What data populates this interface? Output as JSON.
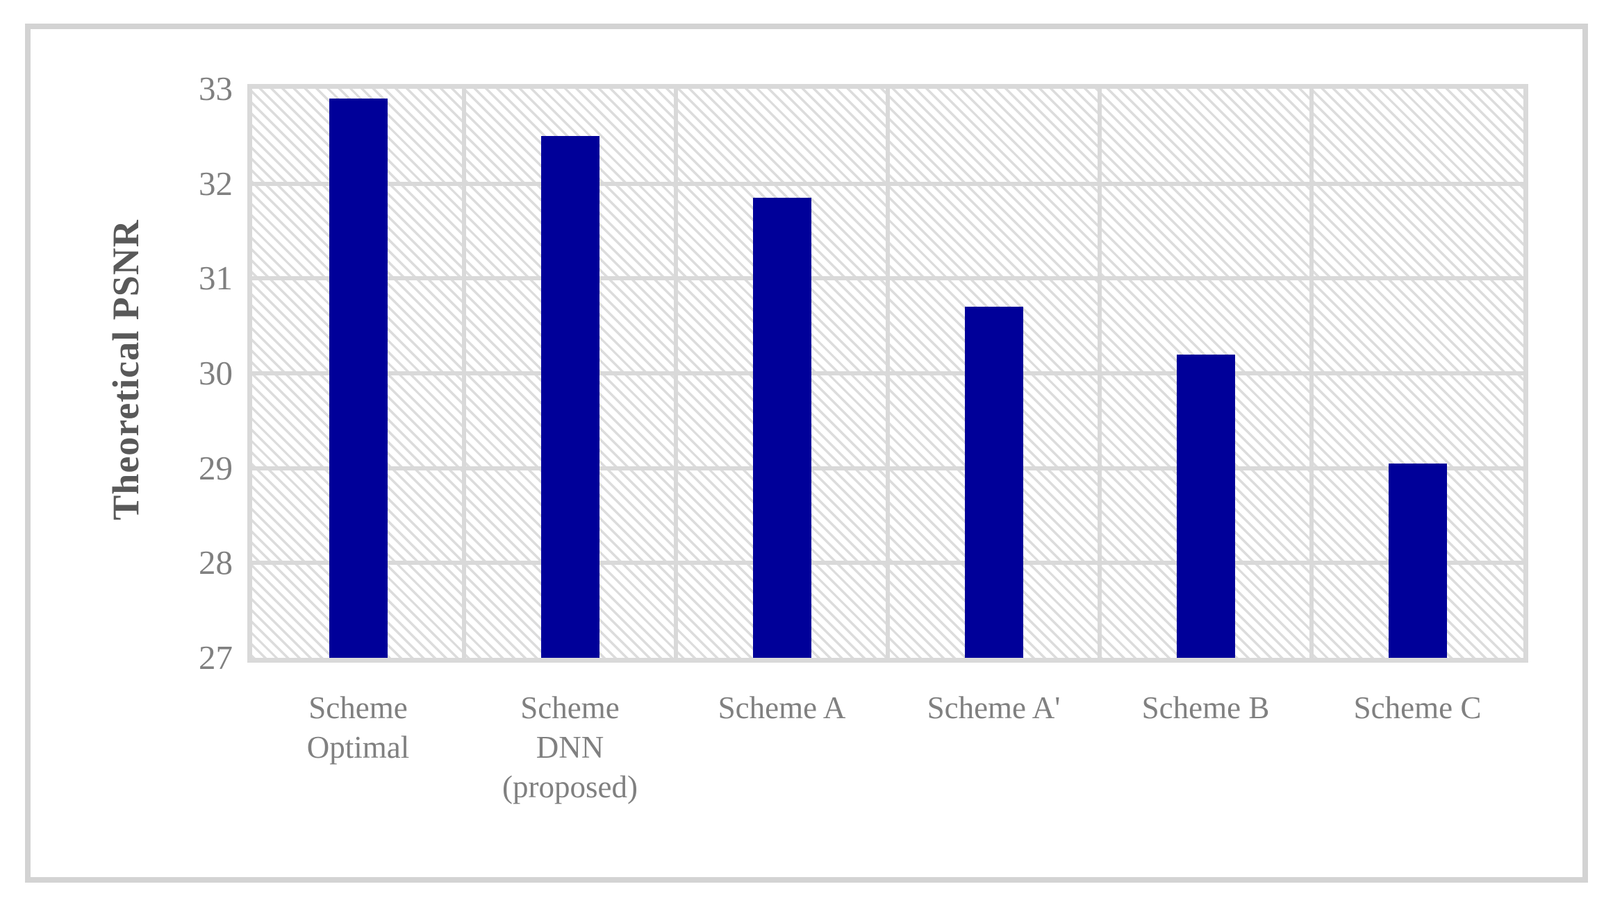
{
  "chart_data": {
    "type": "bar",
    "title": "",
    "xlabel": "",
    "ylabel": "Theoretical PSNR",
    "ylim": [
      27,
      33
    ],
    "yticks": [
      33,
      32,
      31,
      30,
      29,
      28,
      27
    ],
    "grid": "horizontal and vertical gridlines, light gray, hatched plot background",
    "legend": "none",
    "categories": [
      "Scheme Optimal",
      "Scheme DNN (proposed)",
      "Scheme A",
      "Scheme A'",
      "Scheme B",
      "Scheme C"
    ],
    "category_label_lines": [
      [
        "Scheme",
        "Optimal"
      ],
      [
        "Scheme",
        "DNN",
        "(proposed)"
      ],
      [
        "Scheme A"
      ],
      [
        "Scheme A'"
      ],
      [
        "Scheme B"
      ],
      [
        "Scheme C"
      ]
    ],
    "series": [
      {
        "name": "Theoretical PSNR",
        "values": [
          32.9,
          32.5,
          31.85,
          30.7,
          30.2,
          29.05
        ]
      }
    ]
  },
  "style": {
    "bar_color": "#000099",
    "gridline_color": "#d9d9d9",
    "frame_border_color": "#d3d3d3",
    "hatch_stripe_color": "#dcdcdc",
    "tick_label_color": "#808080",
    "category_label_color": "#808080",
    "axis_title_color": "#595959",
    "background_color": "#ffffff"
  }
}
